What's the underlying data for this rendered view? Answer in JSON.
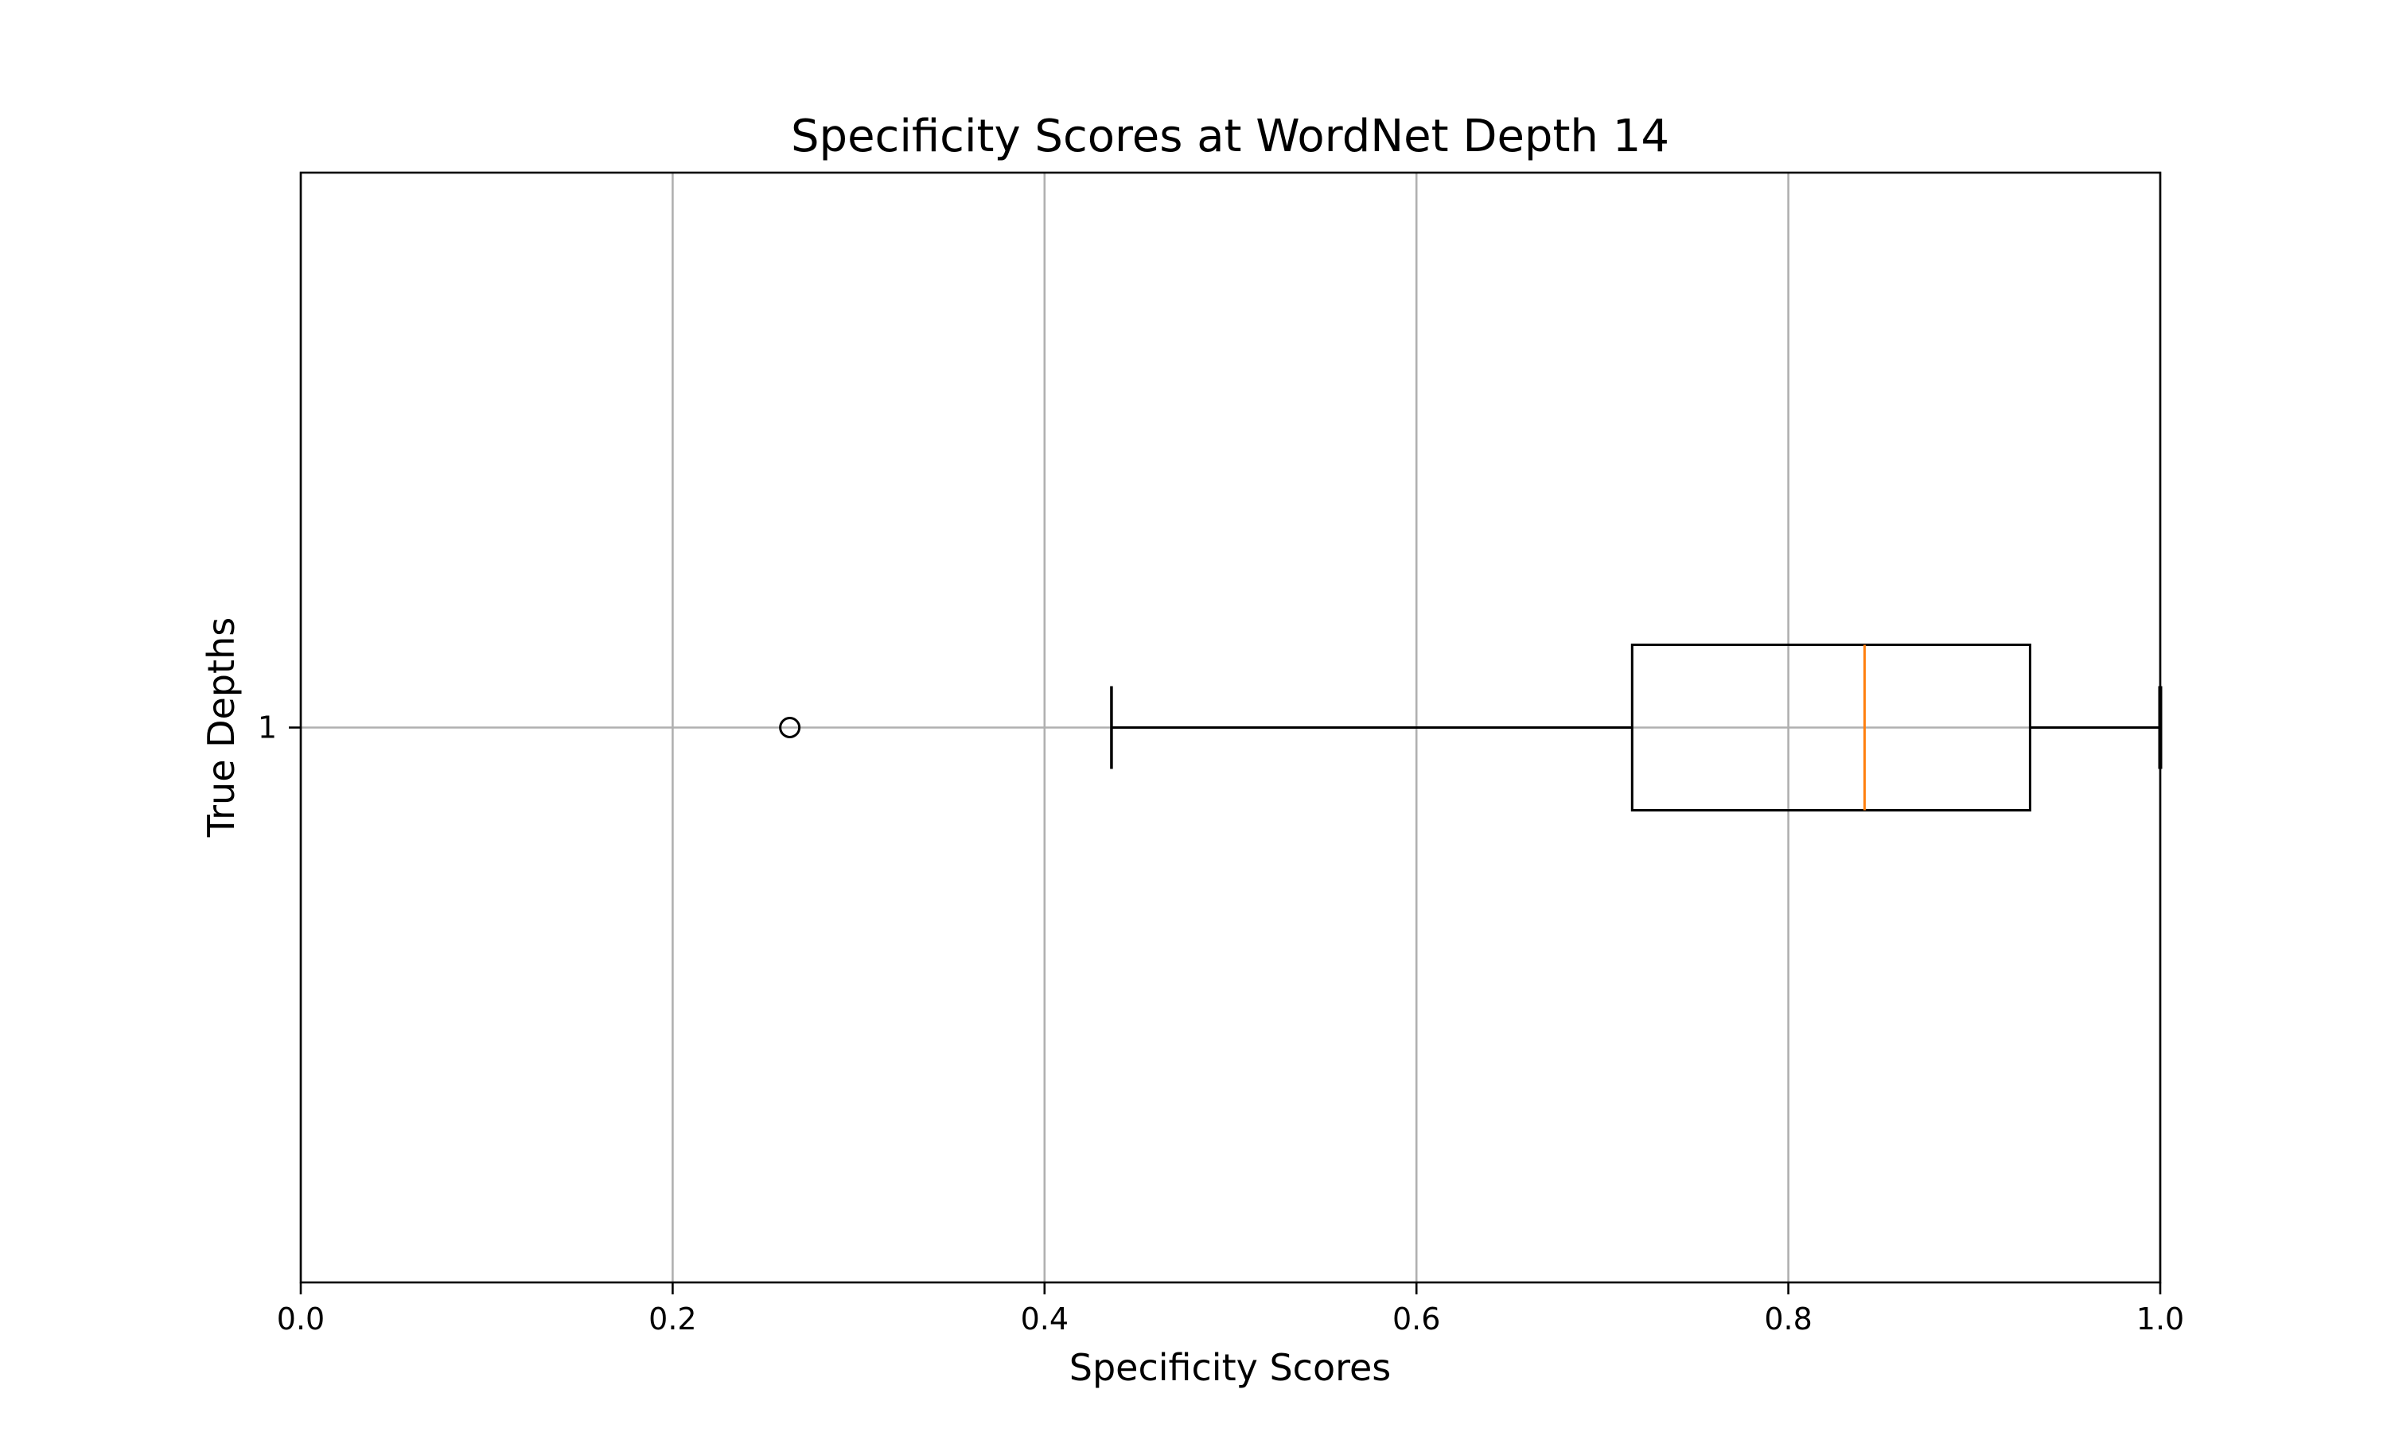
{
  "chart_data": {
    "type": "boxplot",
    "orientation": "horizontal",
    "title": "Specificity Scores at WordNet Depth 14",
    "xlabel": "Specificity Scores",
    "ylabel": "True Depths",
    "xlim": [
      0.0,
      1.0
    ],
    "xticks": [
      0.0,
      0.2,
      0.4,
      0.6,
      0.8,
      1.0
    ],
    "xtick_labels": [
      "0.0",
      "0.2",
      "0.4",
      "0.6",
      "0.8",
      "1.0"
    ],
    "categories": [
      "1"
    ],
    "grid": true,
    "boxes": [
      {
        "category": "1",
        "whisker_low": 0.436,
        "q1": 0.716,
        "median": 0.841,
        "q3": 0.93,
        "whisker_high": 1.0,
        "outliers": [
          0.263
        ]
      }
    ],
    "colors": {
      "box": "#000000",
      "median": "#ff7f0e",
      "grid": "#b0b0b0"
    }
  }
}
